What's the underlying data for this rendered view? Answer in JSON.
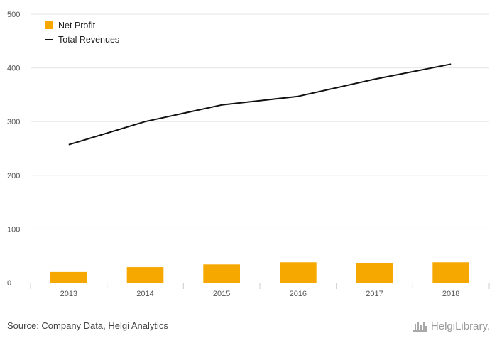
{
  "chart_data": {
    "type": "bar+line",
    "categories": [
      "2013",
      "2014",
      "2015",
      "2016",
      "2017",
      "2018"
    ],
    "series": [
      {
        "name": "Net Profit",
        "kind": "bar",
        "color": "#f7a800",
        "values": [
          20,
          29,
          34,
          38,
          37,
          38
        ]
      },
      {
        "name": "Total Revenues",
        "kind": "line",
        "color": "#111111",
        "values": [
          257,
          300,
          331,
          347,
          379,
          407
        ]
      }
    ],
    "title": "",
    "xlabel": "",
    "ylabel": "",
    "ylim": [
      0,
      500
    ],
    "yticks": [
      0,
      100,
      200,
      300,
      400,
      500
    ],
    "grid": true,
    "legend_position": "top-left"
  },
  "footer": {
    "source": "Source: Company Data, Helgi Analytics",
    "logo_text": "HelgiLibrary."
  },
  "colors": {
    "bar": "#f7a800",
    "line": "#111111",
    "grid": "#e6e6e6",
    "axis": "#cccccc",
    "text": "#555555"
  }
}
